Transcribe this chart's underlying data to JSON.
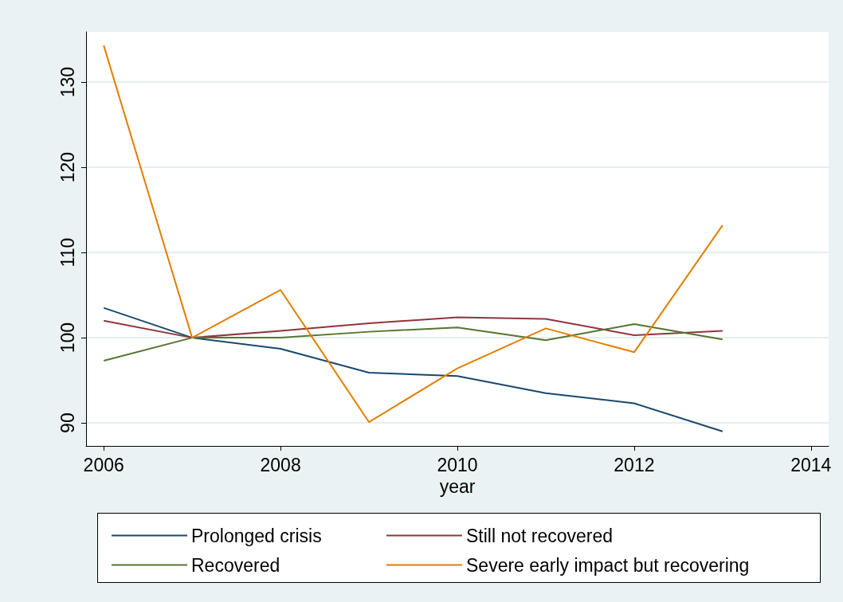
{
  "chart_data": {
    "type": "line",
    "xlabel": "year",
    "x": [
      2006,
      2007,
      2008,
      2009,
      2010,
      2011,
      2012,
      2013
    ],
    "series": [
      {
        "name": "Prolonged crisis",
        "color": "#1a476f",
        "values": [
          103.5,
          100,
          98.7,
          95.9,
          95.5,
          93.5,
          92.3,
          89.0
        ]
      },
      {
        "name": "Still not recovered",
        "color": "#90353b",
        "values": [
          102.0,
          100,
          100.8,
          101.7,
          102.4,
          102.2,
          100.3,
          100.8
        ]
      },
      {
        "name": "Recovered",
        "color": "#55752f",
        "values": [
          97.3,
          100,
          100,
          100.7,
          101.2,
          99.7,
          101.6,
          99.8
        ]
      },
      {
        "name": "Severe early impact but recovering",
        "color": "#e37e00",
        "values": [
          134.3,
          100,
          105.6,
          90.1,
          96.4,
          101.1,
          98.3,
          113.2
        ]
      }
    ],
    "xlim": [
      2005.8,
      2014.2
    ],
    "xticks": [
      2006,
      2008,
      2010,
      2012,
      2014
    ],
    "ylim": [
      87.3,
      135.9
    ],
    "yticks": [
      90,
      100,
      110,
      120,
      130
    ],
    "grid": "y",
    "legend": "bottom"
  }
}
